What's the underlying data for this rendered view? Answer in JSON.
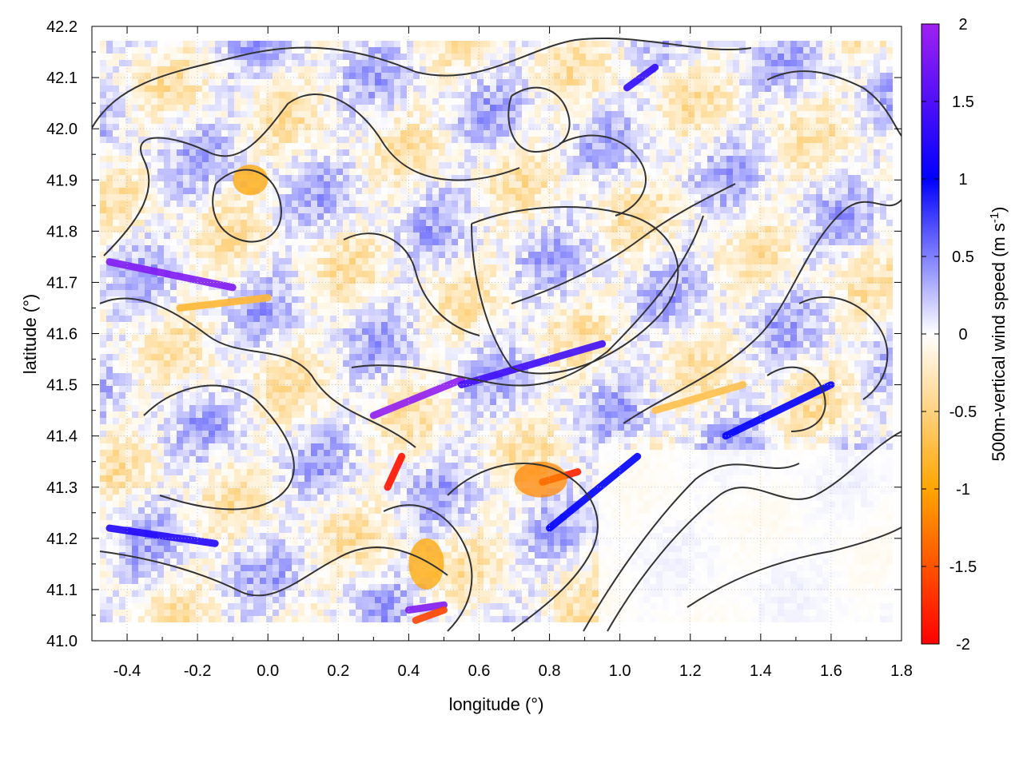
{
  "chart_data": {
    "type": "heatmap",
    "xlabel": "longitude (°)",
    "ylabel": "latitude (°)",
    "colorbar_label": "500m-vertical wind speed (m s",
    "colorbar_unit_sup": "-1",
    "colorbar_label_close": ")",
    "xlim": [
      -0.5,
      1.8
    ],
    "ylim": [
      41.0,
      42.2
    ],
    "xticks": [
      -0.4,
      -0.2,
      0.0,
      0.2,
      0.4,
      0.6,
      0.8,
      1.0,
      1.2,
      1.4,
      1.6,
      1.8
    ],
    "xtick_labels": [
      "-0.4",
      "-0.2",
      "0.0",
      "0.2",
      "0.4",
      "0.6",
      "0.8",
      "1.0",
      "1.2",
      "1.4",
      "1.6",
      "1.8"
    ],
    "yticks": [
      41.0,
      41.1,
      41.2,
      41.3,
      41.4,
      41.5,
      41.6,
      41.7,
      41.8,
      41.9,
      42.0,
      42.1,
      42.2
    ],
    "ytick_labels": [
      "41.0",
      "41.1",
      "41.2",
      "41.3",
      "41.4",
      "41.5",
      "41.6",
      "41.7",
      "41.8",
      "41.9",
      "42.0",
      "42.1",
      "42.2"
    ],
    "colorbar_range": [
      -2,
      2
    ],
    "colorbar_ticks": [
      2,
      1.5,
      1,
      0.5,
      0,
      -0.5,
      -1,
      -1.5,
      -2
    ],
    "colorbar_tick_labels": [
      "2",
      "1.5",
      "1",
      "0.5",
      "0",
      "-0.5",
      "-1",
      "-1.5",
      "-2"
    ],
    "colormap": [
      {
        "value": -2,
        "color": "#ff0000"
      },
      {
        "value": -1,
        "color": "#ffa500"
      },
      {
        "value": 0,
        "color": "#ffffff"
      },
      {
        "value": 1,
        "color": "#0000ff"
      },
      {
        "value": 2,
        "color": "#a020f0"
      }
    ],
    "grid": true,
    "contour_color": "#333333",
    "features": [
      {
        "kind": "positive_streak",
        "lon": [
          -0.45,
          -0.1
        ],
        "lat": [
          41.74,
          41.69
        ],
        "value": 1.8
      },
      {
        "kind": "positive_streak",
        "lon": [
          0.3,
          0.55
        ],
        "lat": [
          41.44,
          41.51
        ],
        "value": 1.9
      },
      {
        "kind": "positive_streak",
        "lon": [
          0.55,
          0.95
        ],
        "lat": [
          41.5,
          41.58
        ],
        "value": 1.4
      },
      {
        "kind": "positive_streak",
        "lon": [
          -0.45,
          -0.15
        ],
        "lat": [
          41.22,
          41.19
        ],
        "value": 1.2
      },
      {
        "kind": "positive_streak",
        "lon": [
          0.4,
          0.5
        ],
        "lat": [
          41.06,
          41.07
        ],
        "value": 1.8
      },
      {
        "kind": "negative_streak",
        "lon": [
          0.34,
          0.38
        ],
        "lat": [
          41.3,
          41.36
        ],
        "value": -1.9
      },
      {
        "kind": "negative_streak",
        "lon": [
          0.78,
          0.88
        ],
        "lat": [
          41.31,
          41.33
        ],
        "value": -1.8
      },
      {
        "kind": "negative_streak",
        "lon": [
          0.42,
          0.5
        ],
        "lat": [
          41.04,
          41.06
        ],
        "value": -1.6
      },
      {
        "kind": "negative_patch",
        "lon": [
          0.4,
          0.5
        ],
        "lat": [
          41.1,
          41.2
        ],
        "value": -1.0
      },
      {
        "kind": "negative_patch",
        "lon": [
          0.7,
          0.85
        ],
        "lat": [
          41.28,
          41.35
        ],
        "value": -1.2
      },
      {
        "kind": "negative_streak",
        "lon": [
          -0.25,
          0.0
        ],
        "lat": [
          41.65,
          41.67
        ],
        "value": -0.8
      },
      {
        "kind": "negative_streak",
        "lon": [
          1.1,
          1.35
        ],
        "lat": [
          41.45,
          41.5
        ],
        "value": -0.7
      },
      {
        "kind": "negative_patch",
        "lon": [
          -0.1,
          0.0
        ],
        "lat": [
          41.87,
          41.93
        ],
        "value": -1.0
      },
      {
        "kind": "positive_streak",
        "lon": [
          1.3,
          1.6
        ],
        "lat": [
          41.4,
          41.5
        ],
        "value": 1.0
      },
      {
        "kind": "positive_streak",
        "lon": [
          0.8,
          1.05
        ],
        "lat": [
          41.22,
          41.36
        ],
        "value": 1.0
      },
      {
        "kind": "positive_streak",
        "lon": [
          1.02,
          1.1
        ],
        "lat": [
          42.08,
          42.12
        ],
        "value": 1.3
      }
    ]
  }
}
